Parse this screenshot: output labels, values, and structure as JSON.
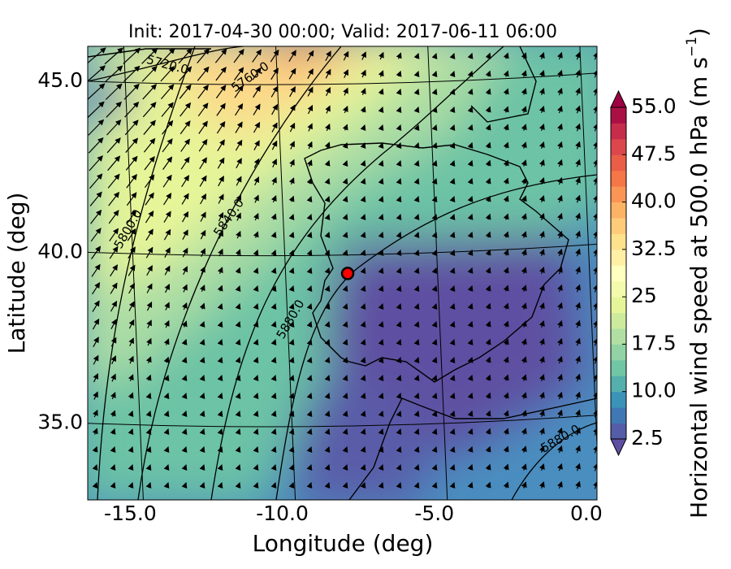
{
  "chart_data": {
    "type": "map",
    "title": "Init: 2017-04-30 00:00; Valid: 2017-06-11 06:00",
    "xlabel": "Longitude (deg)",
    "ylabel": "Latitude (deg)",
    "xlim": [
      -16.4,
      0.35
    ],
    "ylim": [
      32.76,
      46.02
    ],
    "xticks": [
      {
        "value": -15,
        "label": "-15.0"
      },
      {
        "value": -10,
        "label": "-10.0"
      },
      {
        "value": -5,
        "label": "-5.0"
      },
      {
        "value": 0,
        "label": "0.0"
      }
    ],
    "yticks": [
      {
        "value": 35,
        "label": "35.0"
      },
      {
        "value": 40,
        "label": "40.0"
      },
      {
        "value": 45,
        "label": "45.0"
      }
    ],
    "grid": true,
    "marker": {
      "lon": -7.85,
      "lat": 39.38,
      "color": "#ff0000"
    },
    "contour_labels": [
      "5720.0",
      "5760.0",
      "5800.0",
      "5840.0",
      "5880.0",
      "5880.0"
    ],
    "colorbar": {
      "label_parts": [
        "Horizontal wind speed at 500.0 hPa (m s",
        "−1",
        ")"
      ],
      "lim": [
        2.5,
        55
      ],
      "step": 2.5,
      "extend": "both",
      "colormap": [
        "#5e4fa2",
        "#3288bd",
        "#66c2a5",
        "#abdda4",
        "#e6f598",
        "#ffffbf",
        "#fee08b",
        "#fdae61",
        "#f46d43",
        "#d53e4f",
        "#9e0142"
      ],
      "ticks": [
        2.5,
        {
          "value": 10,
          "label": "10.0"
        },
        17.5,
        25,
        32.5,
        {
          "value": 40,
          "label": "40.0"
        },
        47.5,
        {
          "value": 55,
          "label": "55.0"
        }
      ]
    }
  }
}
